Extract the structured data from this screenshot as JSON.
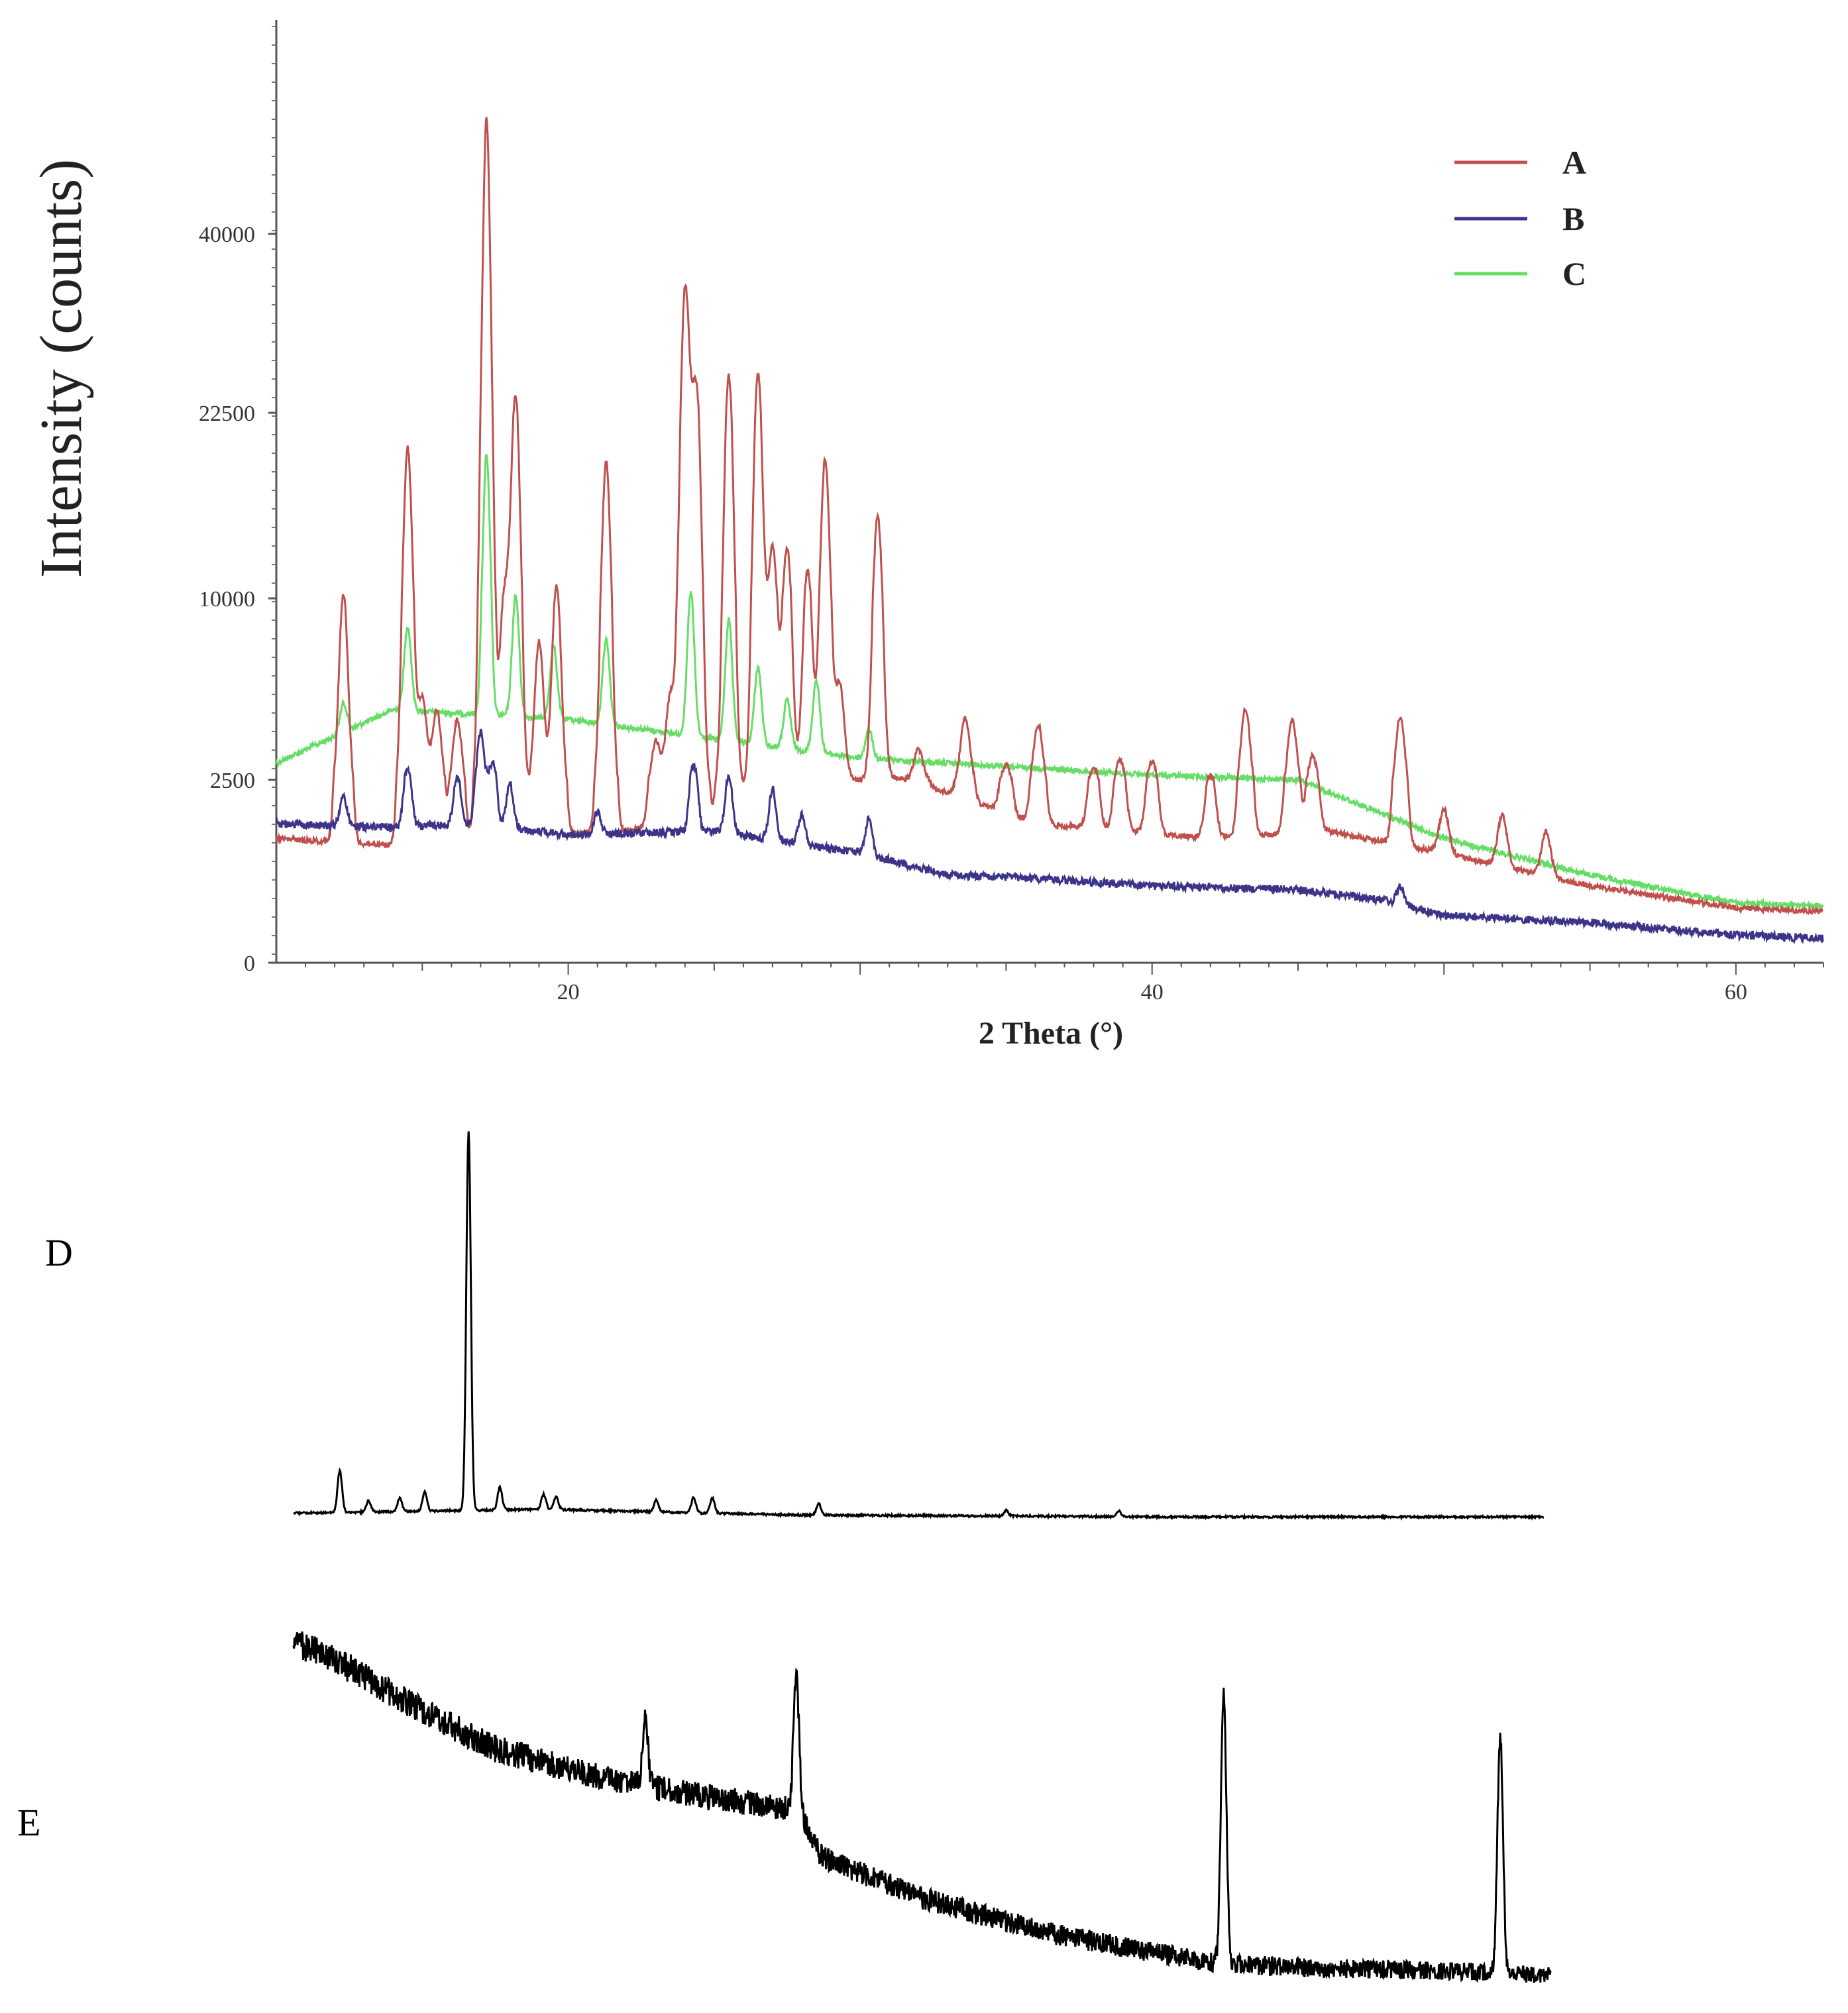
{
  "chart_data": [
    {
      "type": "line",
      "title": "",
      "xlabel": "2 Theta (°)",
      "ylabel": "Intensity (counts)",
      "xlim": [
        10,
        63
      ],
      "x_ticks": [
        20,
        40,
        60
      ],
      "y_ticks": [
        {
          "value": 0,
          "label": "0"
        },
        {
          "value": 2500,
          "label": "2500"
        },
        {
          "value": 10000,
          "label": "10000"
        },
        {
          "value": 22500,
          "label": "22500"
        },
        {
          "value": 40000,
          "label": "40000"
        }
      ],
      "y_axis_note": "non-linear (square-root-like) intensity scale",
      "legend_position": "top-right",
      "series": [
        {
          "name": "A",
          "color": "#c0504d",
          "baseline": [
            [
              10,
              1700
            ],
            [
              14,
              1600
            ],
            [
              17,
              1700
            ],
            [
              22,
              1800
            ],
            [
              31,
              2600
            ],
            [
              36,
              1900
            ],
            [
              42,
              1700
            ],
            [
              46,
              1800
            ],
            [
              50,
              1500
            ],
            [
              55,
              1050
            ],
            [
              60,
              750
            ],
            [
              63,
              700
            ]
          ],
          "peaks": [
            [
              12.3,
              8600
            ],
            [
              14.5,
              18500
            ],
            [
              15,
              4200
            ],
            [
              15.5,
              3700
            ],
            [
              16.2,
              3300
            ],
            [
              17.2,
              49000
            ],
            [
              18.2,
              22000
            ],
            [
              17.8,
              8000
            ],
            [
              19,
              6500
            ],
            [
              19.6,
              9000
            ],
            [
              21.3,
              17500
            ],
            [
              23,
              2200
            ],
            [
              23.5,
              4000
            ],
            [
              24,
              32000
            ],
            [
              24.4,
              22000
            ],
            [
              25.5,
              24000
            ],
            [
              26.5,
              24000
            ],
            [
              27,
              11000
            ],
            [
              27.5,
              11000
            ],
            [
              28.2,
              9500
            ],
            [
              28.8,
              17000
            ],
            [
              29.3,
              4000
            ],
            [
              30.6,
              13000
            ],
            [
              32,
              1300
            ],
            [
              33.6,
              2800
            ],
            [
              35,
              1100
            ],
            [
              36.1,
              2900
            ],
            [
              38,
              1200
            ],
            [
              38.9,
              1500
            ],
            [
              40,
              1500
            ],
            [
              42,
              1000
            ],
            [
              43.2,
              3700
            ],
            [
              44.8,
              3200
            ],
            [
              45.5,
              1700
            ],
            [
              48.5,
              3500
            ],
            [
              50,
              600
            ],
            [
              52,
              700
            ],
            [
              53.5,
              600
            ]
          ]
        },
        {
          "name": "B",
          "color": "#3c3489",
          "baseline": [
            [
              10,
              1900
            ],
            [
              14,
              1850
            ],
            [
              17,
              1900
            ],
            [
              20,
              1750
            ],
            [
              25,
              1800
            ],
            [
              30,
              1500
            ],
            [
              33,
              1200
            ],
            [
              36,
              1150
            ],
            [
              40,
              1050
            ],
            [
              45,
              1000
            ],
            [
              48,
              850
            ],
            [
              50,
              650
            ],
            [
              55,
              550
            ],
            [
              60,
              380
            ],
            [
              63,
              330
            ]
          ],
          "peaks": [
            [
              12.3,
              400
            ],
            [
              14.5,
              1000
            ],
            [
              16.2,
              700
            ],
            [
              17,
              2600
            ],
            [
              17.4,
              1300
            ],
            [
              18,
              600
            ],
            [
              21,
              300
            ],
            [
              24.3,
              1300
            ],
            [
              25.5,
              800
            ],
            [
              27,
              700
            ],
            [
              28,
              400
            ],
            [
              30.3,
              500
            ],
            [
              48.5,
              250
            ]
          ]
        },
        {
          "name": "C",
          "color": "#66dd66",
          "baseline": [
            [
              10,
              3200
            ],
            [
              14,
              5400
            ],
            [
              20,
              5000
            ],
            [
              25,
              4200
            ],
            [
              30,
              3400
            ],
            [
              40,
              2700
            ],
            [
              45,
              2500
            ],
            [
              50,
              1700
            ],
            [
              55,
              1200
            ],
            [
              60,
              820
            ],
            [
              63,
              780
            ]
          ],
          "peaks": [
            [
              12.3,
              1200
            ],
            [
              14.5,
              3500
            ],
            [
              17.2,
              14500
            ],
            [
              18.2,
              5000
            ],
            [
              19.5,
              3000
            ],
            [
              21.3,
              3500
            ],
            [
              24.2,
              6000
            ],
            [
              25.5,
              5000
            ],
            [
              26.5,
              3200
            ],
            [
              27.5,
              2000
            ],
            [
              28.5,
              3000
            ],
            [
              30.3,
              1200
            ]
          ]
        }
      ]
    },
    {
      "type": "line",
      "title": "D",
      "series": [
        {
          "name": "D",
          "color": "#000000",
          "baseline": [
            [
              0,
              0.02
            ],
            [
              0.2,
              0.03
            ],
            [
              0.4,
              0.015
            ],
            [
              0.7,
              0.01
            ],
            [
              1,
              0.01
            ]
          ],
          "peaks": [
            [
              0.037,
              0.11
            ],
            [
              0.06,
              0.03
            ],
            [
              0.085,
              0.035
            ],
            [
              0.105,
              0.05
            ],
            [
              0.14,
              1.0
            ],
            [
              0.165,
              0.06
            ],
            [
              0.2,
              0.04
            ],
            [
              0.21,
              0.035
            ],
            [
              0.29,
              0.03
            ],
            [
              0.32,
              0.04
            ],
            [
              0.335,
              0.04
            ],
            [
              0.42,
              0.03
            ],
            [
              0.57,
              0.015
            ],
            [
              0.66,
              0.015
            ]
          ]
        }
      ]
    },
    {
      "type": "line",
      "title": "E",
      "series": [
        {
          "name": "E",
          "color": "#000000",
          "baseline": [
            [
              0,
              0.92
            ],
            [
              0.05,
              0.84
            ],
            [
              0.1,
              0.74
            ],
            [
              0.16,
              0.64
            ],
            [
              0.25,
              0.56
            ],
            [
              0.3,
              0.53
            ],
            [
              0.4,
              0.48
            ],
            [
              0.42,
              0.36
            ],
            [
              0.5,
              0.25
            ],
            [
              0.6,
              0.16
            ],
            [
              0.7,
              0.1
            ],
            [
              0.74,
              0.08
            ],
            [
              0.8,
              0.07
            ],
            [
              0.93,
              0.06
            ],
            [
              1,
              0.05
            ]
          ],
          "peaks": [
            [
              0.28,
              0.17
            ],
            [
              0.4,
              0.36
            ],
            [
              0.74,
              0.7
            ],
            [
              0.96,
              0.62
            ]
          ]
        }
      ]
    }
  ],
  "legend": {
    "A": "A",
    "B": "B",
    "C": "C"
  },
  "panel_labels": {
    "d": "D",
    "e": "E"
  }
}
